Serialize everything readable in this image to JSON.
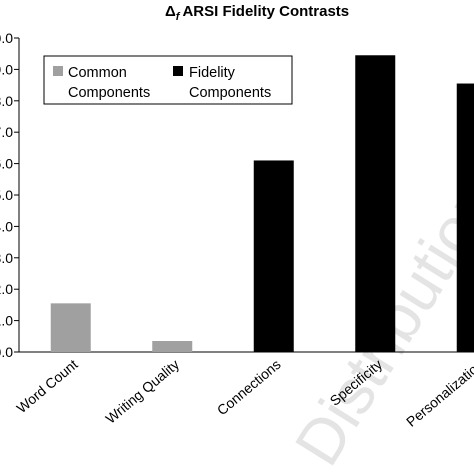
{
  "chart_data": {
    "type": "bar",
    "title": "ARSI Fidelity Contrasts",
    "title_symbol": "Δ",
    "title_subscript": "f",
    "categories": [
      "Word Count",
      "Writing Quality",
      "Connections",
      "Specificity",
      "Personalization"
    ],
    "series": [
      {
        "name": "Common Components",
        "color": "#a0a0a0",
        "values": [
          1.55,
          0.35,
          null,
          null,
          null
        ]
      },
      {
        "name": "Fidelity Components",
        "color": "#000000",
        "values": [
          null,
          null,
          6.1,
          9.45,
          8.55
        ]
      }
    ],
    "legend": {
      "placement": "top-left",
      "entries": [
        {
          "line1": "Common",
          "line2": "Components",
          "color": "#a0a0a0"
        },
        {
          "line1": "Fidelity",
          "line2": "Components",
          "color": "#000000"
        }
      ]
    },
    "ylim": [
      0,
      10
    ],
    "grid": false,
    "watermark": "Distribution"
  }
}
